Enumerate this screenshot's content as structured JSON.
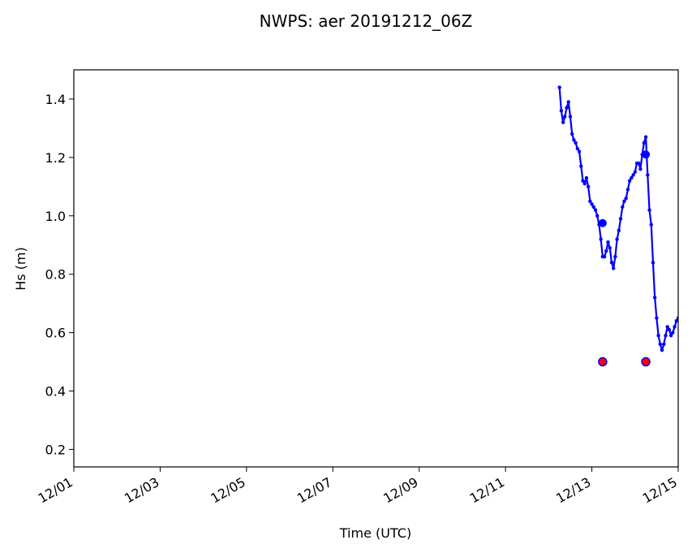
{
  "chart_data": {
    "type": "line",
    "title": "NWPS: aer 20191212_06Z",
    "xlabel": "Time (UTC)",
    "ylabel": "Hs (m)",
    "xlim": [
      "2019-12-01",
      "2019-12-15"
    ],
    "ylim": [
      0.14,
      1.5
    ],
    "xticks": [
      {
        "label": "12/01",
        "date": "2019-12-01"
      },
      {
        "label": "12/03",
        "date": "2019-12-03"
      },
      {
        "label": "12/05",
        "date": "2019-12-05"
      },
      {
        "label": "12/07",
        "date": "2019-12-07"
      },
      {
        "label": "12/09",
        "date": "2019-12-09"
      },
      {
        "label": "12/11",
        "date": "2019-12-11"
      },
      {
        "label": "12/13",
        "date": "2019-12-13"
      },
      {
        "label": "12/15",
        "date": "2019-12-15"
      }
    ],
    "yticks": [
      {
        "label": "0.2",
        "value": 0.2
      },
      {
        "label": "0.4",
        "value": 0.4
      },
      {
        "label": "0.6",
        "value": 0.6
      },
      {
        "label": "0.8",
        "value": 0.8
      },
      {
        "label": "1.0",
        "value": 1.0
      },
      {
        "label": "1.2",
        "value": 1.2
      },
      {
        "label": "1.4",
        "value": 1.4
      }
    ],
    "grid": false,
    "legend": "none",
    "colors": {
      "line": "#0000ff",
      "marker_fill": "#ff0000",
      "marker_edge": "#0000ff"
    },
    "series": [
      {
        "kind": "line",
        "points": [
          [
            "2019-12-12 06:00",
            1.44
          ],
          [
            "2019-12-12 07:00",
            1.36
          ],
          [
            "2019-12-12 08:00",
            1.32
          ],
          [
            "2019-12-12 09:00",
            1.34
          ],
          [
            "2019-12-12 10:00",
            1.37
          ],
          [
            "2019-12-12 11:00",
            1.39
          ],
          [
            "2019-12-12 12:00",
            1.34
          ],
          [
            "2019-12-12 13:00",
            1.28
          ],
          [
            "2019-12-12 14:00",
            1.26
          ],
          [
            "2019-12-12 15:00",
            1.25
          ],
          [
            "2019-12-12 16:00",
            1.23
          ],
          [
            "2019-12-12 17:00",
            1.22
          ],
          [
            "2019-12-12 18:00",
            1.17
          ],
          [
            "2019-12-12 19:00",
            1.12
          ],
          [
            "2019-12-12 20:00",
            1.11
          ],
          [
            "2019-12-12 21:00",
            1.13
          ],
          [
            "2019-12-12 22:00",
            1.1
          ],
          [
            "2019-12-12 23:00",
            1.05
          ],
          [
            "2019-12-13 00:00",
            1.04
          ],
          [
            "2019-12-13 01:00",
            1.03
          ],
          [
            "2019-12-13 02:00",
            1.02
          ],
          [
            "2019-12-13 03:00",
            1.0
          ],
          [
            "2019-12-13 04:00",
            0.97
          ],
          [
            "2019-12-13 05:00",
            0.92
          ],
          [
            "2019-12-13 06:00",
            0.86
          ],
          [
            "2019-12-13 07:00",
            0.86
          ],
          [
            "2019-12-13 08:00",
            0.88
          ],
          [
            "2019-12-13 09:00",
            0.91
          ],
          [
            "2019-12-13 10:00",
            0.89
          ],
          [
            "2019-12-13 11:00",
            0.84
          ],
          [
            "2019-12-13 12:00",
            0.82
          ],
          [
            "2019-12-13 13:00",
            0.86
          ],
          [
            "2019-12-13 14:00",
            0.92
          ],
          [
            "2019-12-13 15:00",
            0.95
          ],
          [
            "2019-12-13 16:00",
            0.99
          ],
          [
            "2019-12-13 17:00",
            1.03
          ],
          [
            "2019-12-13 18:00",
            1.05
          ],
          [
            "2019-12-13 19:00",
            1.06
          ],
          [
            "2019-12-13 20:00",
            1.09
          ],
          [
            "2019-12-13 21:00",
            1.12
          ],
          [
            "2019-12-13 22:00",
            1.13
          ],
          [
            "2019-12-13 23:00",
            1.14
          ],
          [
            "2019-12-14 00:00",
            1.15
          ],
          [
            "2019-12-14 01:00",
            1.18
          ],
          [
            "2019-12-14 02:00",
            1.18
          ],
          [
            "2019-12-14 03:00",
            1.16
          ],
          [
            "2019-12-14 04:00",
            1.21
          ],
          [
            "2019-12-14 05:00",
            1.25
          ],
          [
            "2019-12-14 06:00",
            1.27
          ],
          [
            "2019-12-14 07:00",
            1.14
          ],
          [
            "2019-12-14 08:00",
            1.02
          ],
          [
            "2019-12-14 09:00",
            0.97
          ],
          [
            "2019-12-14 10:00",
            0.84
          ],
          [
            "2019-12-14 11:00",
            0.72
          ],
          [
            "2019-12-14 12:00",
            0.65
          ],
          [
            "2019-12-14 13:00",
            0.59
          ],
          [
            "2019-12-14 14:00",
            0.56
          ],
          [
            "2019-12-14 15:00",
            0.54
          ],
          [
            "2019-12-14 16:00",
            0.56
          ],
          [
            "2019-12-14 17:00",
            0.59
          ],
          [
            "2019-12-14 18:00",
            0.62
          ],
          [
            "2019-12-14 19:00",
            0.61
          ],
          [
            "2019-12-14 20:00",
            0.59
          ],
          [
            "2019-12-14 21:00",
            0.6
          ],
          [
            "2019-12-14 22:00",
            0.62
          ],
          [
            "2019-12-14 23:00",
            0.64
          ],
          [
            "2019-12-15 00:00",
            0.65
          ]
        ]
      },
      {
        "kind": "highlight-points",
        "points": [
          [
            "2019-12-13 06:00",
            0.975
          ],
          [
            "2019-12-14 06:00",
            1.21
          ]
        ]
      },
      {
        "kind": "scatter",
        "points": [
          [
            "2019-12-13 06:00",
            0.5
          ],
          [
            "2019-12-14 06:00",
            0.5
          ]
        ]
      }
    ]
  }
}
